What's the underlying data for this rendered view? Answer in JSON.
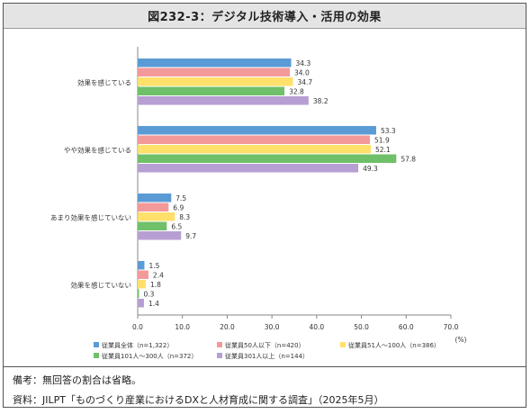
{
  "header": {
    "title": "図232-3：デジタル技術導入・活用の効果"
  },
  "footer": {
    "note": "備考：無回答の割合は省略。",
    "source": "資料：JILPT「ものづくり産業におけるDXと人材育成に関する調査」（2025年5月）"
  },
  "chart_data": {
    "type": "bar",
    "orientation": "horizontal",
    "categories": [
      "効果を感じている",
      "やや効果を感じている",
      "あまり効果を感じていない",
      "効果を感じていない"
    ],
    "series": [
      {
        "name": "従業員全体（n=1,322）",
        "color": "#5b9bd5",
        "values": [
          34.3,
          53.3,
          7.5,
          1.5
        ]
      },
      {
        "name": "従業員50人以下（n=420）",
        "color": "#f4999a",
        "values": [
          34.0,
          51.9,
          6.9,
          2.4
        ]
      },
      {
        "name": "従業員51人～100人（n=386）",
        "color": "#ffe06b",
        "values": [
          34.7,
          52.1,
          8.3,
          1.8
        ]
      },
      {
        "name": "従業員101人～300人（n=372）",
        "color": "#70c06a",
        "values": [
          32.8,
          57.8,
          6.5,
          0.3
        ]
      },
      {
        "name": "従業員301人以上（n=144）",
        "color": "#b79fd3",
        "values": [
          38.2,
          49.3,
          9.7,
          1.4
        ]
      }
    ],
    "xlim": [
      0,
      70
    ],
    "xticks": [
      "0.0",
      "10.0",
      "20.0",
      "30.0",
      "40.0",
      "50.0",
      "60.0",
      "70.0"
    ],
    "xunit": "(%)",
    "legend_position": "bottom"
  }
}
